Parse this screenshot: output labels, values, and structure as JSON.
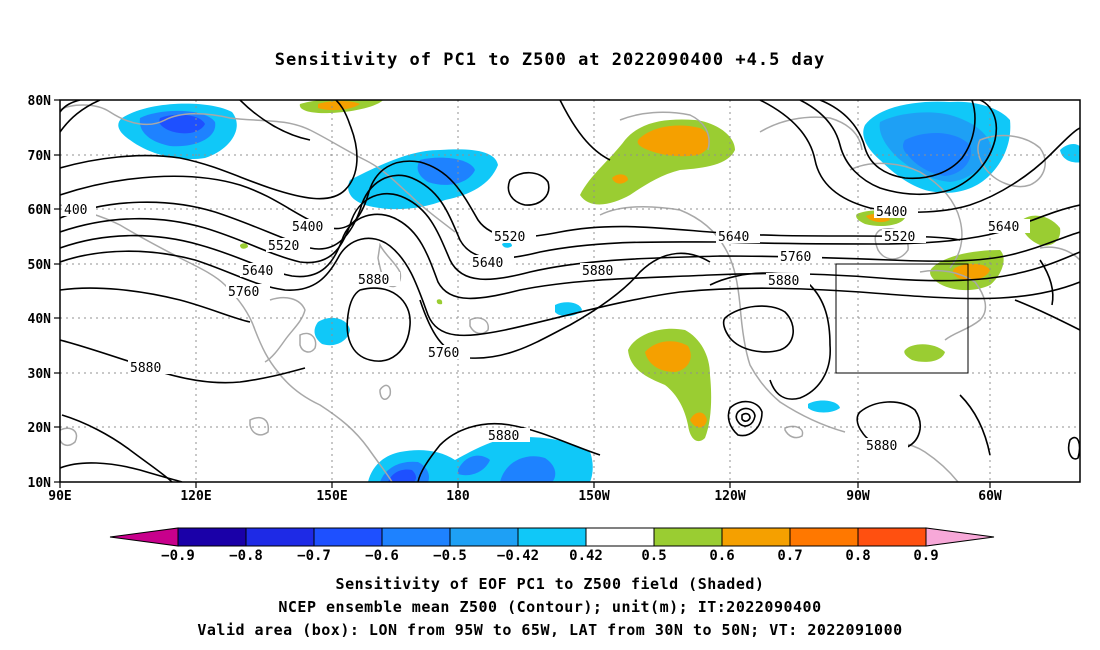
{
  "title": "Sensitivity of PC1 to Z500 at 2022090400 +4.5 day",
  "map": {
    "lat_labels": [
      "80N",
      "70N",
      "60N",
      "50N",
      "40N",
      "30N",
      "20N",
      "10N"
    ],
    "lon_labels": [
      "90E",
      "120E",
      "150E",
      "180",
      "150W",
      "120W",
      "90W",
      "60W"
    ],
    "contour_labels": [
      "400",
      "5400",
      "5520",
      "5640",
      "5760",
      "5880",
      "5520",
      "5640",
      "5880",
      "5760",
      "5880",
      "5640",
      "5760",
      "5880",
      "5400",
      "5520",
      "5640",
      "5880",
      "5880"
    ],
    "shading_colors": {
      "neg_09": "#1a00a8",
      "neg_08": "#1e2ae6",
      "neg_07": "#1e50ff",
      "neg_06": "#1e82ff",
      "neg_05": "#1ea0f5",
      "neg_042": "#10c8f8",
      "pos_042": "#9acd32",
      "pos_05": "#f5a000",
      "pos_06": "#ff7800",
      "pos_07": "#ff5010",
      "pos_08": "#ff2814",
      "pos_09": "#f7a8d8"
    },
    "valid_box": "95W-65W, 30N-50N"
  },
  "colorbar": {
    "labels": [
      "−0.9",
      "−0.8",
      "−0.7",
      "−0.6",
      "−0.5",
      "−0.42",
      "0.42",
      "0.5",
      "0.6",
      "0.7",
      "0.8",
      "0.9"
    ],
    "colors": [
      "#1a00a8",
      "#1e2ae6",
      "#1e50ff",
      "#1e82ff",
      "#1ea0f5",
      "#10c8f8",
      "#ffffff",
      "#9acd32",
      "#f5a000",
      "#ff7800",
      "#ff5010",
      "#ff2814",
      "#ff0000"
    ],
    "low_end_color": "#c8008c",
    "high_end_color": "#f7a8d8"
  },
  "footer": {
    "line1": "Sensitivity of EOF PC1 to Z500 field (Shaded)",
    "line2": "NCEP ensemble mean Z500 (Contour); unit(m); IT:2022090400",
    "line3": "Valid area (box): LON from 95W to 65W, LAT from 30N to 50N; VT: 2022091000"
  }
}
